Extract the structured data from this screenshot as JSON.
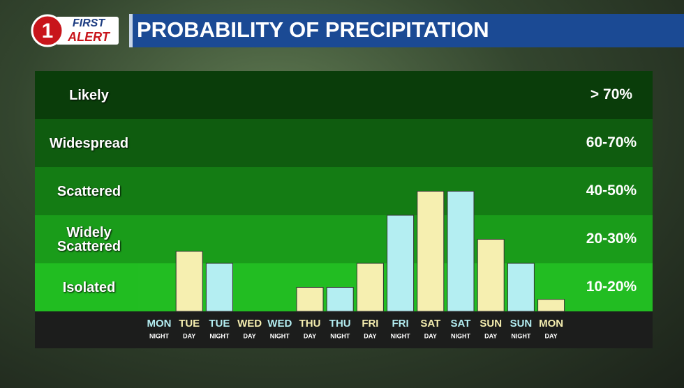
{
  "header": {
    "logo_number": "1",
    "logo_top": "FIRST",
    "logo_bottom": "ALERT"
  },
  "chart_data": {
    "type": "bar",
    "title": "PROBABILITY OF PRECIPITATION",
    "categories": [
      {
        "day": "MON",
        "period": "NIGHT"
      },
      {
        "day": "TUE",
        "period": "DAY"
      },
      {
        "day": "TUE",
        "period": "NIGHT"
      },
      {
        "day": "WED",
        "period": "DAY"
      },
      {
        "day": "WED",
        "period": "NIGHT"
      },
      {
        "day": "THU",
        "period": "DAY"
      },
      {
        "day": "THU",
        "period": "NIGHT"
      },
      {
        "day": "FRI",
        "period": "DAY"
      },
      {
        "day": "FRI",
        "period": "NIGHT"
      },
      {
        "day": "SAT",
        "period": "DAY"
      },
      {
        "day": "SAT",
        "period": "NIGHT"
      },
      {
        "day": "SUN",
        "period": "DAY"
      },
      {
        "day": "SUN",
        "period": "NIGHT"
      },
      {
        "day": "MON",
        "period": "DAY"
      }
    ],
    "values": [
      0,
      1.25,
      1,
      0,
      0,
      0.5,
      0.5,
      1,
      2,
      2.5,
      2.5,
      1.5,
      1,
      0.25
    ],
    "colors": [
      "#b4eef2",
      "#f6efb0",
      "#b4eef2",
      "#f6efb0",
      "#b4eef2",
      "#f6efb0",
      "#b4eef2",
      "#f6efb0",
      "#b4eef2",
      "#f6efb0",
      "#b4eef2",
      "#f6efb0",
      "#b4eef2",
      "#f6efb0"
    ],
    "ylim": [
      0,
      5
    ],
    "bands": [
      {
        "name": "Isolated",
        "range": "10-20%",
        "color": "#22bd22"
      },
      {
        "name": "Widely Scattered",
        "range": "20-30%",
        "color": "#1a9c1a"
      },
      {
        "name": "Scattered",
        "range": "40-50%",
        "color": "#147c14"
      },
      {
        "name": "Widespread",
        "range": "60-70%",
        "color": "#0f5c0f"
      },
      {
        "name": "Likely",
        "range": "> 70%",
        "color": "#0a3d0a"
      }
    ]
  }
}
